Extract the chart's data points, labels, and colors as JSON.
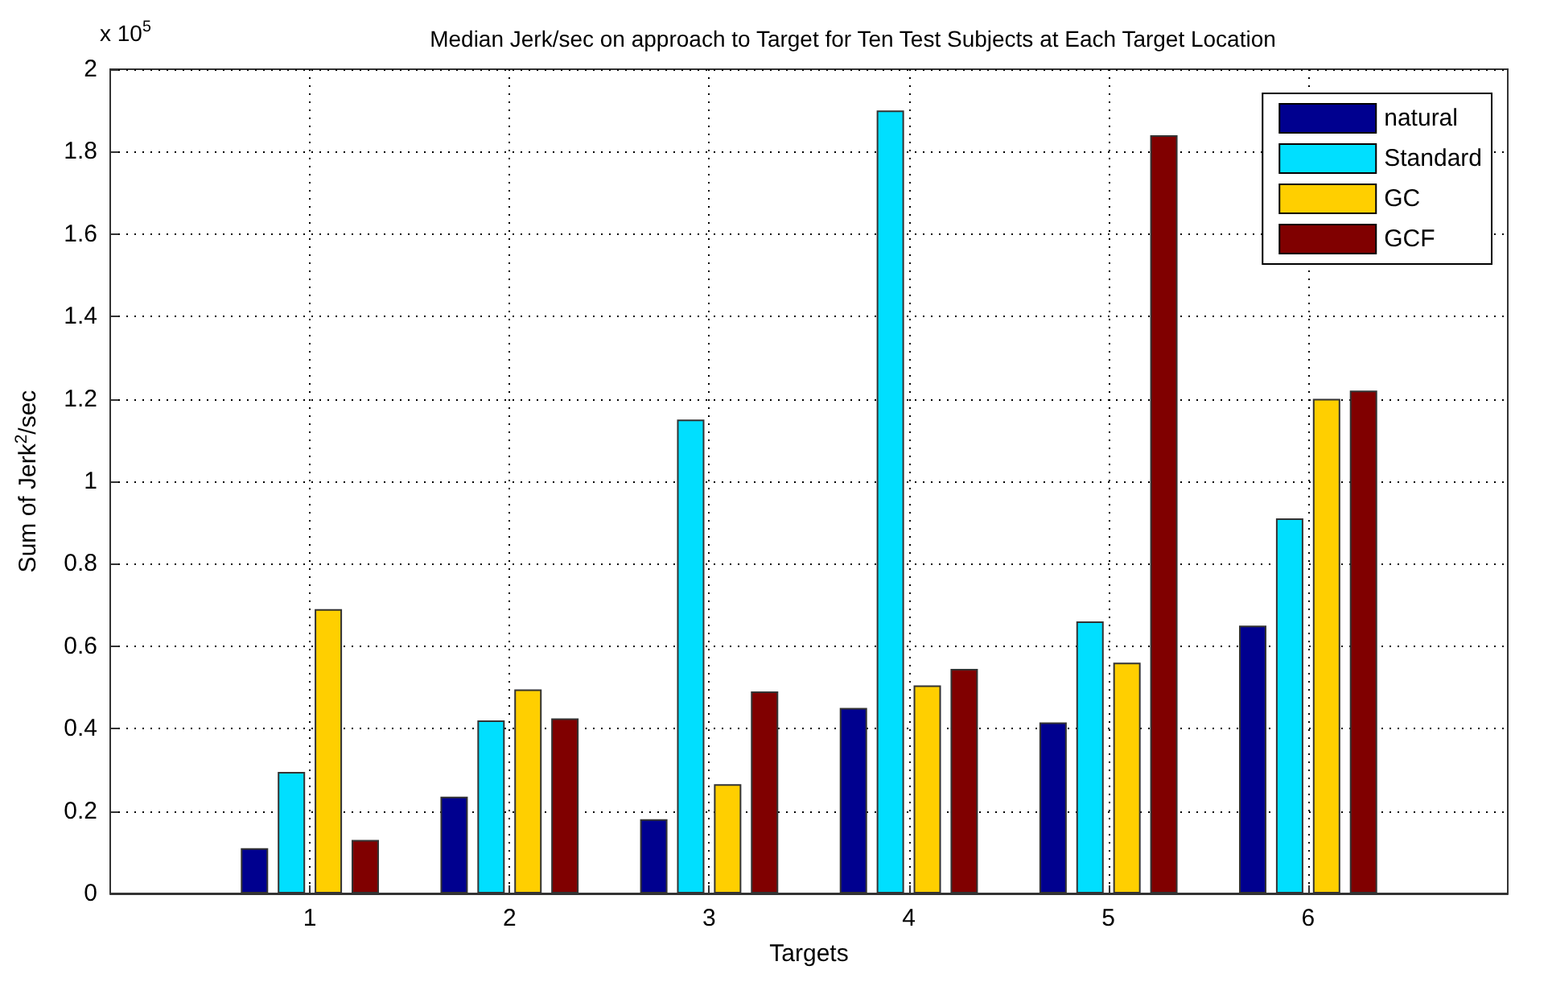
{
  "chart_data": {
    "type": "bar",
    "title": "Median Jerk/sec on approach to Target for Ten Test Subjects at Each Target Location",
    "xlabel": "Targets",
    "ylabel": "Sum of Jerk$^{2}$/sec",
    "annotations": [
      "x 10$^{5}$"
    ],
    "x": [
      1,
      2,
      3,
      4,
      5,
      6
    ],
    "xlim": [
      0,
      7
    ],
    "xticks": [
      1,
      2,
      3,
      4,
      5,
      6
    ],
    "ylim": [
      0,
      2
    ],
    "yticks": [
      0,
      0.2,
      0.4,
      0.6,
      0.8,
      1,
      1.2,
      1.4,
      1.6,
      1.8,
      2
    ],
    "series": [
      {
        "name": "natural",
        "color": "#00008f",
        "values": [
          0.11,
          0.235,
          0.18,
          0.45,
          0.415,
          0.65
        ]
      },
      {
        "name": "Standard",
        "color": "#00dfff",
        "values": [
          0.295,
          0.42,
          1.15,
          1.9,
          0.66,
          0.91
        ]
      },
      {
        "name": "GC",
        "color": "#ffcf00",
        "values": [
          0.69,
          0.495,
          0.265,
          0.505,
          0.56,
          1.2
        ]
      },
      {
        "name": "GCF",
        "color": "#800000",
        "values": [
          0.13,
          0.425,
          0.49,
          0.545,
          1.84,
          1.22
        ]
      }
    ],
    "grid": true,
    "legend": "top right"
  }
}
